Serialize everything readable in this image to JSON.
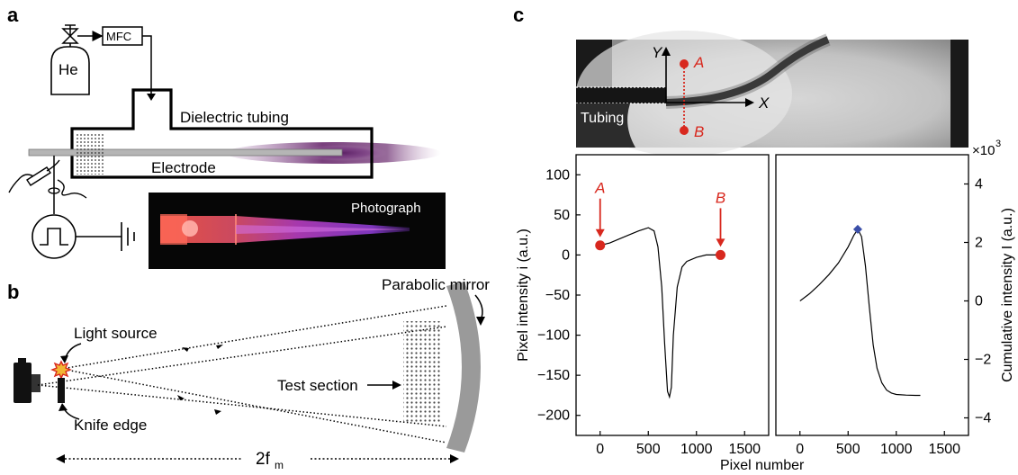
{
  "panels": {
    "a": {
      "label": "a",
      "he_label": "He",
      "mfc_label": "MFC",
      "tubing_label": "Dielectric tubing",
      "electrode_label": "Electrode",
      "photo_label": "Photograph"
    },
    "b": {
      "label": "b",
      "light_source_label": "Light source",
      "knife_edge_label": "Knife edge",
      "test_section_label": "Test section",
      "mirror_label": "Parabolic mirror",
      "distance_label": "2f",
      "distance_sub": "m"
    },
    "c": {
      "label": "c",
      "tubing_label": "Tubing",
      "axis_y_label": "Y",
      "axis_x_label": "X",
      "point_a_label": "A",
      "point_b_label": "B",
      "scale_label": "×10",
      "scale_exp": "3",
      "x_axis_label": "Pixel number",
      "left_y_label": "Pixel intensity i (a.u.)",
      "right_y_label": "Cumulative intensity I (a.u.)"
    }
  },
  "chart_data": [
    {
      "type": "line",
      "xlim": [
        -250,
        1750
      ],
      "ylim": [
        -225,
        125
      ],
      "x_ticks": [
        0,
        500,
        1000,
        1500
      ],
      "y_ticks": [
        100,
        50,
        0,
        -50,
        -100,
        -150,
        -200
      ],
      "xlabel": "Pixel number",
      "ylabel": "Pixel intensity i (a.u.)",
      "series": [
        {
          "x": [
            0,
            100,
            200,
            300,
            400,
            500,
            560,
            600,
            640,
            670,
            700,
            720,
            740,
            760,
            800,
            850,
            900,
            1000,
            1100,
            1200,
            1250
          ],
          "y": [
            12,
            15,
            20,
            25,
            30,
            34,
            30,
            10,
            -40,
            -110,
            -170,
            -177,
            -165,
            -100,
            -40,
            -15,
            -8,
            -3,
            0,
            0,
            0
          ]
        }
      ],
      "annotations": [
        {
          "label": "A",
          "x": 0,
          "y": 12
        },
        {
          "label": "B",
          "x": 1250,
          "y": 0
        }
      ]
    },
    {
      "type": "line",
      "xlim": [
        -250,
        1750
      ],
      "ylim": [
        -4.6,
        5.0
      ],
      "x_ticks": [
        0,
        500,
        1000,
        1500
      ],
      "y_ticks": [
        4,
        2,
        0,
        -2,
        -4
      ],
      "ylabel": "Cumulative intensity I (a.u.)",
      "y_scale_factor": "×10^3",
      "series": [
        {
          "x": [
            0,
            100,
            200,
            300,
            400,
            500,
            560,
            600,
            640,
            680,
            720,
            760,
            800,
            850,
            900,
            950,
            1000,
            1100,
            1200,
            1250
          ],
          "y": [
            0,
            0.25,
            0.55,
            0.9,
            1.3,
            1.85,
            2.25,
            2.45,
            2.2,
            1.2,
            -0.2,
            -1.5,
            -2.3,
            -2.8,
            -3.05,
            -3.15,
            -3.2,
            -3.22,
            -3.23,
            -3.23
          ]
        }
      ],
      "marker": {
        "x": 600,
        "y": 2.45,
        "color": "#3a4ea8"
      }
    }
  ],
  "colors": {
    "red": "#d8281e",
    "blue": "#3a4ea8",
    "purple": "#6a2a6e",
    "mirror": "#9a9a9a"
  }
}
